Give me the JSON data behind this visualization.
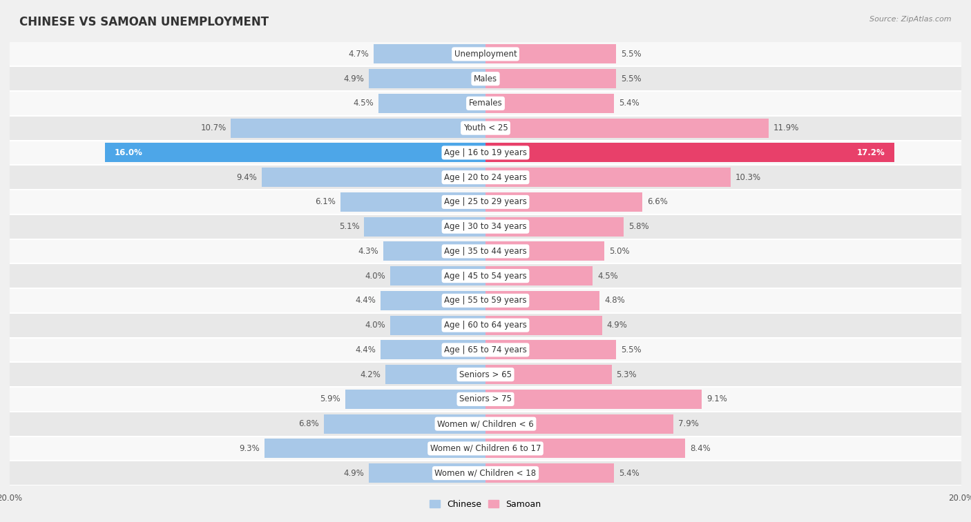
{
  "title": "CHINESE VS SAMOAN UNEMPLOYMENT",
  "source": "Source: ZipAtlas.com",
  "categories": [
    "Unemployment",
    "Males",
    "Females",
    "Youth < 25",
    "Age | 16 to 19 years",
    "Age | 20 to 24 years",
    "Age | 25 to 29 years",
    "Age | 30 to 34 years",
    "Age | 35 to 44 years",
    "Age | 45 to 54 years",
    "Age | 55 to 59 years",
    "Age | 60 to 64 years",
    "Age | 65 to 74 years",
    "Seniors > 65",
    "Seniors > 75",
    "Women w/ Children < 6",
    "Women w/ Children 6 to 17",
    "Women w/ Children < 18"
  ],
  "chinese": [
    4.7,
    4.9,
    4.5,
    10.7,
    16.0,
    9.4,
    6.1,
    5.1,
    4.3,
    4.0,
    4.4,
    4.0,
    4.4,
    4.2,
    5.9,
    6.8,
    9.3,
    4.9
  ],
  "samoan": [
    5.5,
    5.5,
    5.4,
    11.9,
    17.2,
    10.3,
    6.6,
    5.8,
    5.0,
    4.5,
    4.8,
    4.9,
    5.5,
    5.3,
    9.1,
    7.9,
    8.4,
    5.4
  ],
  "chinese_color": "#a8c8e8",
  "samoan_color": "#f4a0b8",
  "chinese_highlight_color": "#4da6e8",
  "samoan_highlight_color": "#e8406a",
  "axis_limit": 20.0,
  "bg_color": "#f0f0f0",
  "row_color_light": "#f8f8f8",
  "row_color_dark": "#e8e8e8",
  "separator_color": "#ffffff",
  "title_fontsize": 12,
  "label_fontsize": 8.5,
  "value_fontsize": 8.5,
  "legend_fontsize": 9,
  "bar_height": 0.78
}
